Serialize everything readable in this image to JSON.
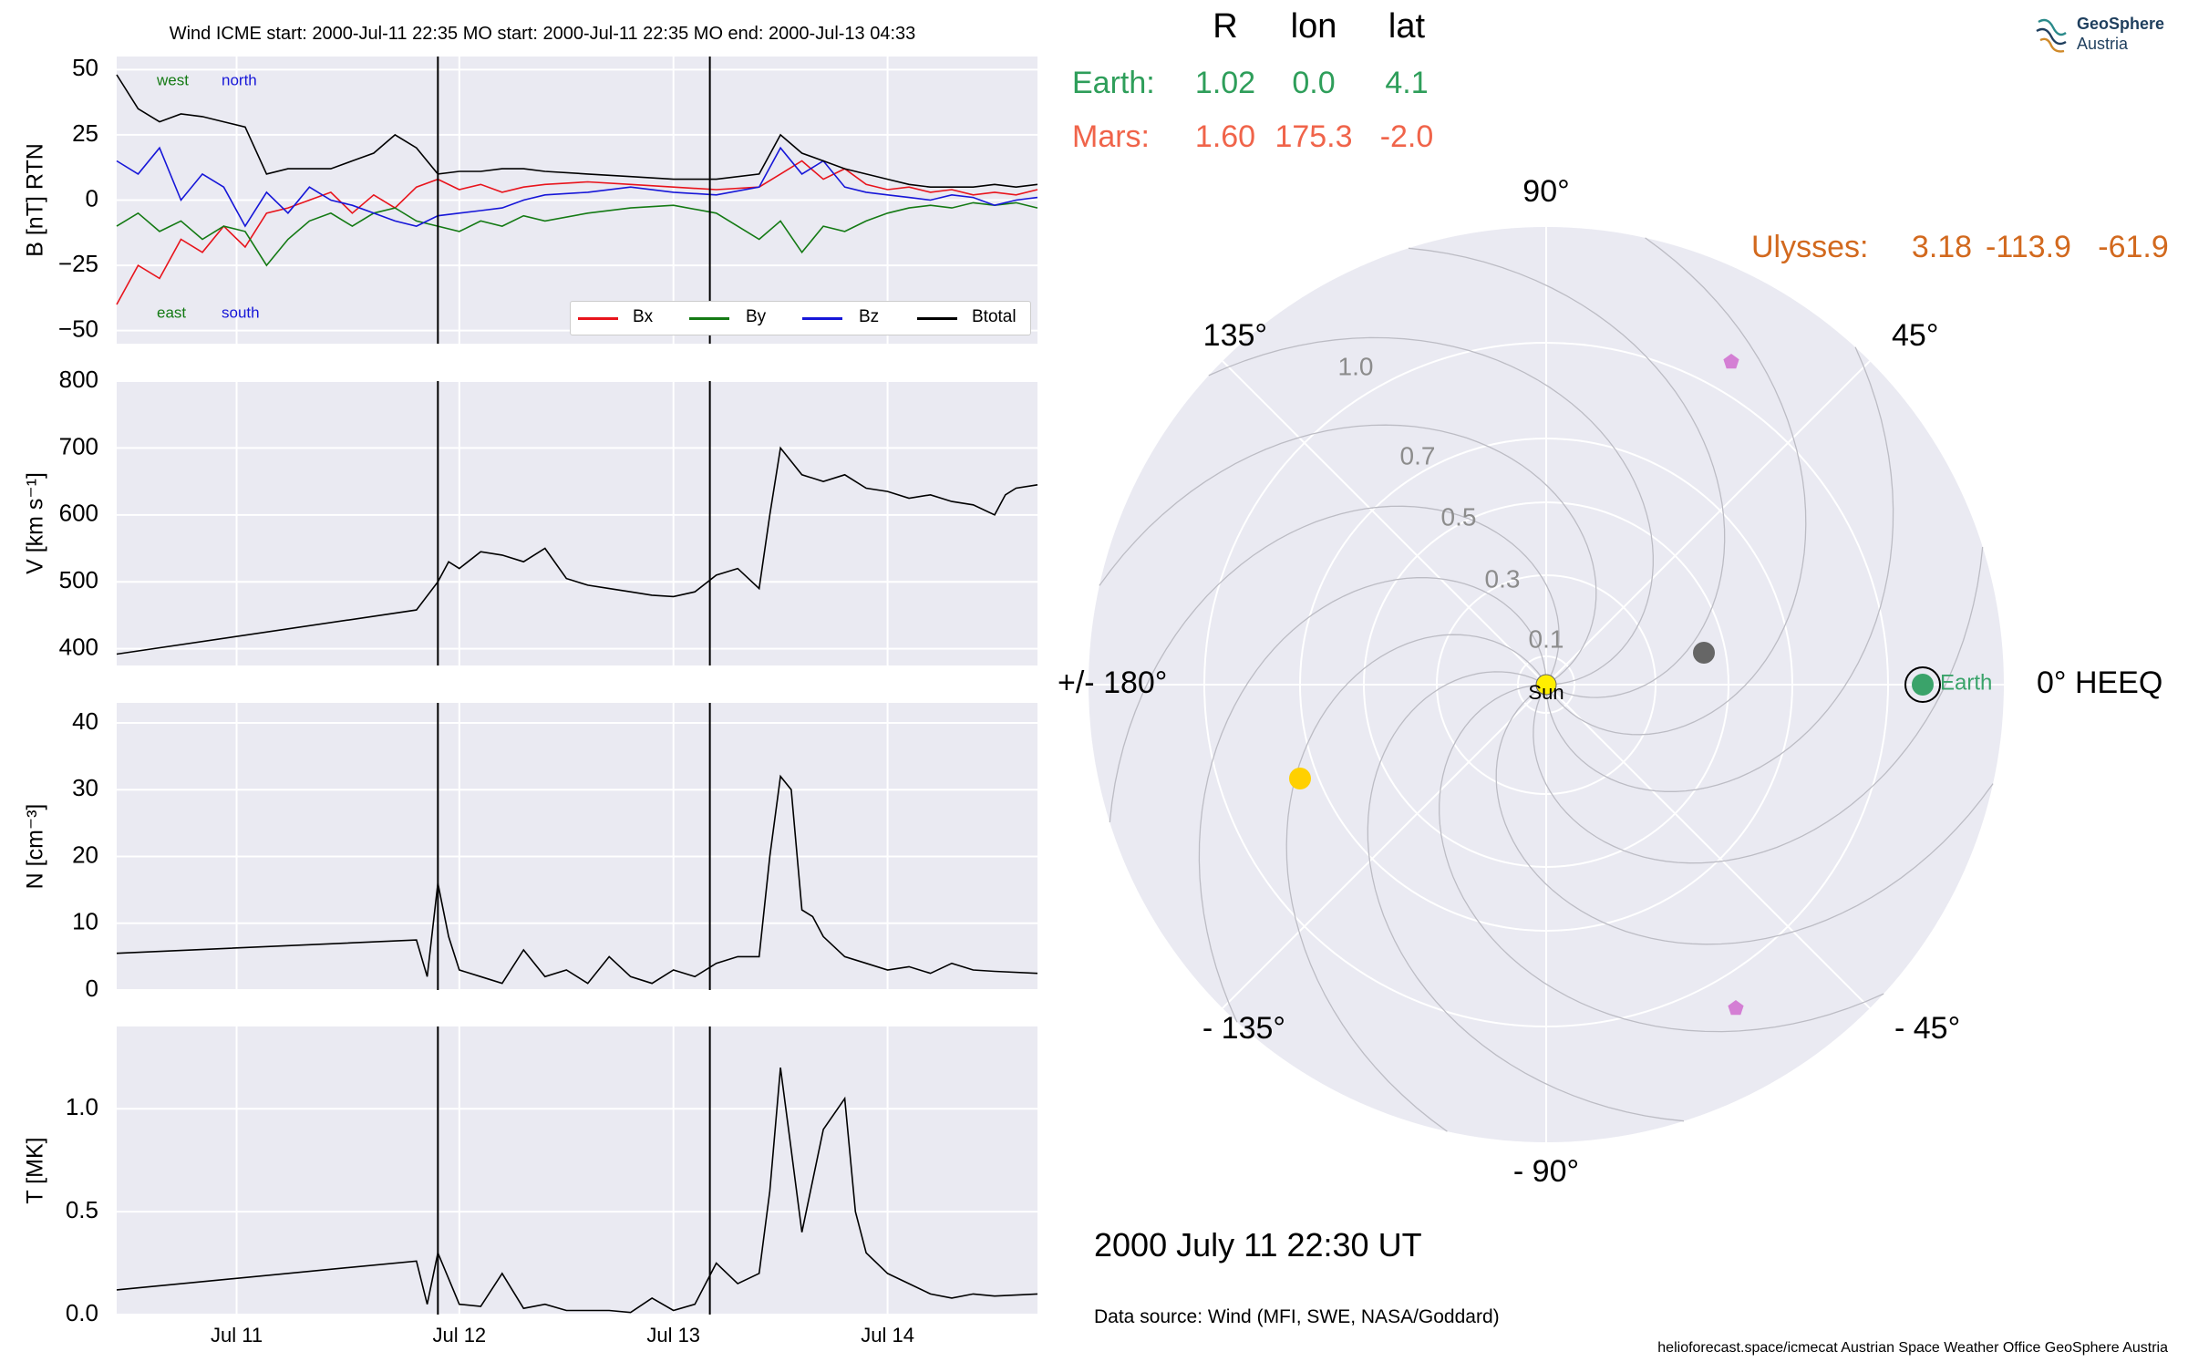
{
  "header": {
    "title": "Wind    ICME start: 2000-Jul-11 22:35   MO start: 2000-Jul-11 22:35   MO end: 2000-Jul-13 04:33"
  },
  "logo": {
    "line1": "GeoSphere",
    "line2": "Austria"
  },
  "polar": {
    "columns": [
      "R",
      "lon",
      "lat"
    ],
    "rows": [
      {
        "name": "Earth:",
        "R": "1.02",
        "lon": "0.0",
        "lat": "4.1",
        "color": "#2e9e5a"
      },
      {
        "name": "Mars:",
        "R": "1.60",
        "lon": "175.3",
        "lat": "-2.0",
        "color": "#f0644a"
      },
      {
        "name": "Ulysses:",
        "R": "3.18",
        "lon": "-113.9",
        "lat": "-61.9",
        "color": "#d2691e"
      }
    ],
    "angle_labels": [
      "0° HEEQ",
      "45°",
      "90°",
      "135°",
      "+/- 180°",
      "- 135°",
      "- 90°",
      "- 45°"
    ],
    "radial_ticks": [
      "0.1",
      "0.3",
      "0.5",
      "0.7",
      "1.0"
    ],
    "sun_label": "Sun",
    "earth_label": "Earth"
  },
  "date_label": "2000 July 11  22:30 UT",
  "source_label": "Data source: Wind (MFI, SWE, NASA/Goddard)",
  "footer": "helioforecast.space/icmecat   Austrian Space Weather Office   GeoSphere Austria",
  "chart_data": [
    {
      "type": "line",
      "ylabel": "B [nT] RTN",
      "ylim": [
        -55,
        55
      ],
      "yticks": [
        "50",
        "25",
        "0",
        "−25",
        "−50"
      ],
      "xlim": [
        0,
        4.3
      ],
      "annotations": {
        "west": "west",
        "north": "north",
        "east": "east",
        "south": "south"
      },
      "series": [
        {
          "name": "Bx",
          "color": "#e8141c",
          "x": [
            0,
            0.1,
            0.2,
            0.3,
            0.4,
            0.5,
            0.6,
            0.7,
            0.8,
            0.9,
            1.0,
            1.1,
            1.2,
            1.3,
            1.4,
            1.5,
            1.6,
            1.7,
            1.8,
            1.9,
            2.0,
            2.2,
            2.4,
            2.6,
            2.8,
            3.0,
            3.1,
            3.2,
            3.3,
            3.4,
            3.5,
            3.6,
            3.7,
            3.8,
            3.9,
            4.0,
            4.1,
            4.2,
            4.3
          ],
          "values": [
            -40,
            -25,
            -30,
            -15,
            -20,
            -10,
            -18,
            -5,
            -3,
            0,
            3,
            -5,
            2,
            -3,
            5,
            8,
            4,
            6,
            3,
            5,
            6,
            7,
            6,
            5,
            4,
            5,
            10,
            15,
            8,
            12,
            6,
            4,
            5,
            3,
            4,
            2,
            3,
            2,
            4
          ]
        },
        {
          "name": "By",
          "color": "#147a14",
          "x": [
            0,
            0.1,
            0.2,
            0.3,
            0.4,
            0.5,
            0.6,
            0.7,
            0.8,
            0.9,
            1.0,
            1.1,
            1.2,
            1.3,
            1.4,
            1.5,
            1.6,
            1.7,
            1.8,
            1.9,
            2.0,
            2.2,
            2.4,
            2.6,
            2.8,
            3.0,
            3.1,
            3.2,
            3.3,
            3.4,
            3.5,
            3.6,
            3.7,
            3.8,
            3.9,
            4.0,
            4.1,
            4.2,
            4.3
          ],
          "values": [
            -10,
            -5,
            -12,
            -8,
            -15,
            -10,
            -12,
            -25,
            -15,
            -8,
            -5,
            -10,
            -5,
            -3,
            -8,
            -10,
            -12,
            -8,
            -10,
            -6,
            -8,
            -5,
            -3,
            -2,
            -5,
            -15,
            -8,
            -20,
            -10,
            -12,
            -8,
            -5,
            -3,
            -2,
            -3,
            -1,
            -2,
            -1,
            -3
          ]
        },
        {
          "name": "Bz",
          "color": "#1616d8",
          "x": [
            0,
            0.1,
            0.2,
            0.3,
            0.4,
            0.5,
            0.6,
            0.7,
            0.8,
            0.9,
            1.0,
            1.1,
            1.2,
            1.3,
            1.4,
            1.5,
            1.6,
            1.7,
            1.8,
            1.9,
            2.0,
            2.2,
            2.4,
            2.6,
            2.8,
            3.0,
            3.1,
            3.2,
            3.3,
            3.4,
            3.5,
            3.6,
            3.7,
            3.8,
            3.9,
            4.0,
            4.1,
            4.2,
            4.3
          ],
          "values": [
            15,
            10,
            20,
            0,
            10,
            5,
            -10,
            3,
            -5,
            5,
            0,
            -2,
            -5,
            -8,
            -10,
            -6,
            -5,
            -4,
            -3,
            0,
            2,
            3,
            5,
            3,
            2,
            5,
            20,
            10,
            15,
            5,
            3,
            2,
            1,
            0,
            2,
            1,
            -2,
            0,
            1
          ]
        },
        {
          "name": "Btotal",
          "color": "#000000",
          "x": [
            0,
            0.1,
            0.2,
            0.3,
            0.4,
            0.5,
            0.6,
            0.7,
            0.8,
            0.9,
            1.0,
            1.1,
            1.2,
            1.3,
            1.4,
            1.5,
            1.6,
            1.7,
            1.8,
            1.9,
            2.0,
            2.2,
            2.4,
            2.6,
            2.8,
            3.0,
            3.1,
            3.2,
            3.3,
            3.4,
            3.5,
            3.6,
            3.7,
            3.8,
            3.9,
            4.0,
            4.1,
            4.2,
            4.3
          ],
          "values": [
            48,
            35,
            30,
            33,
            32,
            30,
            28,
            10,
            12,
            12,
            12,
            15,
            18,
            25,
            20,
            10,
            11,
            11,
            12,
            12,
            11,
            10,
            9,
            8,
            8,
            10,
            25,
            18,
            15,
            12,
            10,
            8,
            6,
            5,
            5,
            5,
            6,
            5,
            6
          ]
        }
      ],
      "vlines": [
        1.5,
        2.77
      ]
    },
    {
      "type": "line",
      "ylabel": "V [km s⁻¹]",
      "ylim": [
        375,
        800
      ],
      "yticks": [
        "800",
        "700",
        "600",
        "500",
        "400"
      ],
      "xlim": [
        0,
        4.3
      ],
      "series": [
        {
          "name": "V",
          "color": "#000000",
          "x": [
            0,
            1.4,
            1.5,
            1.55,
            1.6,
            1.7,
            1.8,
            1.9,
            2.0,
            2.1,
            2.2,
            2.3,
            2.4,
            2.5,
            2.6,
            2.7,
            2.8,
            2.9,
            3.0,
            3.05,
            3.1,
            3.15,
            3.2,
            3.3,
            3.4,
            3.5,
            3.6,
            3.7,
            3.8,
            3.9,
            4.0,
            4.1,
            4.15,
            4.2,
            4.3
          ],
          "values": [
            392,
            458,
            500,
            530,
            520,
            545,
            540,
            530,
            550,
            505,
            495,
            490,
            485,
            480,
            478,
            485,
            510,
            520,
            490,
            600,
            700,
            680,
            660,
            650,
            660,
            640,
            635,
            625,
            630,
            620,
            615,
            600,
            630,
            640,
            645
          ]
        }
      ],
      "vlines": [
        1.5,
        2.77
      ]
    },
    {
      "type": "line",
      "ylabel": "N [cm⁻³]",
      "ylim": [
        0,
        43
      ],
      "yticks": [
        "40",
        "30",
        "20",
        "10",
        "0"
      ],
      "xlim": [
        0,
        4.3
      ],
      "series": [
        {
          "name": "N",
          "color": "#000000",
          "x": [
            0,
            1.4,
            1.45,
            1.5,
            1.55,
            1.6,
            1.7,
            1.8,
            1.9,
            2.0,
            2.1,
            2.2,
            2.3,
            2.4,
            2.5,
            2.6,
            2.7,
            2.8,
            2.9,
            3.0,
            3.05,
            3.1,
            3.15,
            3.2,
            3.25,
            3.3,
            3.4,
            3.5,
            3.6,
            3.7,
            3.8,
            3.9,
            4.0,
            4.1,
            4.3
          ],
          "values": [
            5.5,
            7.5,
            2,
            16,
            8,
            3,
            2,
            1,
            6,
            2,
            3,
            1,
            5,
            2,
            1,
            3,
            2,
            4,
            5,
            5,
            20,
            32,
            30,
            12,
            11,
            8,
            5,
            4,
            3,
            3.5,
            2.5,
            4,
            3,
            2.8,
            2.5
          ]
        }
      ],
      "vlines": [
        1.5,
        2.77
      ]
    },
    {
      "type": "line",
      "ylabel": "T [MK]",
      "ylim": [
        0,
        1.4
      ],
      "yticks": [
        "1.0",
        "0.5",
        "0.0"
      ],
      "xlim": [
        0,
        4.3
      ],
      "xticks": [
        "Jul 11",
        "Jul 12",
        "Jul 13",
        "Jul 14"
      ],
      "xtick_pos": [
        0.56,
        1.6,
        2.6,
        3.6
      ],
      "series": [
        {
          "name": "T",
          "color": "#000000",
          "x": [
            0,
            1.4,
            1.45,
            1.5,
            1.6,
            1.7,
            1.8,
            1.9,
            2.0,
            2.1,
            2.2,
            2.3,
            2.4,
            2.5,
            2.6,
            2.7,
            2.8,
            2.9,
            3.0,
            3.05,
            3.1,
            3.15,
            3.2,
            3.3,
            3.4,
            3.45,
            3.5,
            3.6,
            3.7,
            3.8,
            3.9,
            4.0,
            4.1,
            4.3
          ],
          "values": [
            0.12,
            0.26,
            0.05,
            0.3,
            0.05,
            0.04,
            0.2,
            0.03,
            0.05,
            0.02,
            0.02,
            0.02,
            0.01,
            0.08,
            0.02,
            0.05,
            0.25,
            0.15,
            0.2,
            0.6,
            1.2,
            0.8,
            0.4,
            0.9,
            1.05,
            0.5,
            0.3,
            0.2,
            0.15,
            0.1,
            0.08,
            0.1,
            0.09,
            0.1
          ]
        }
      ],
      "vlines": [
        1.5,
        2.77
      ]
    }
  ]
}
